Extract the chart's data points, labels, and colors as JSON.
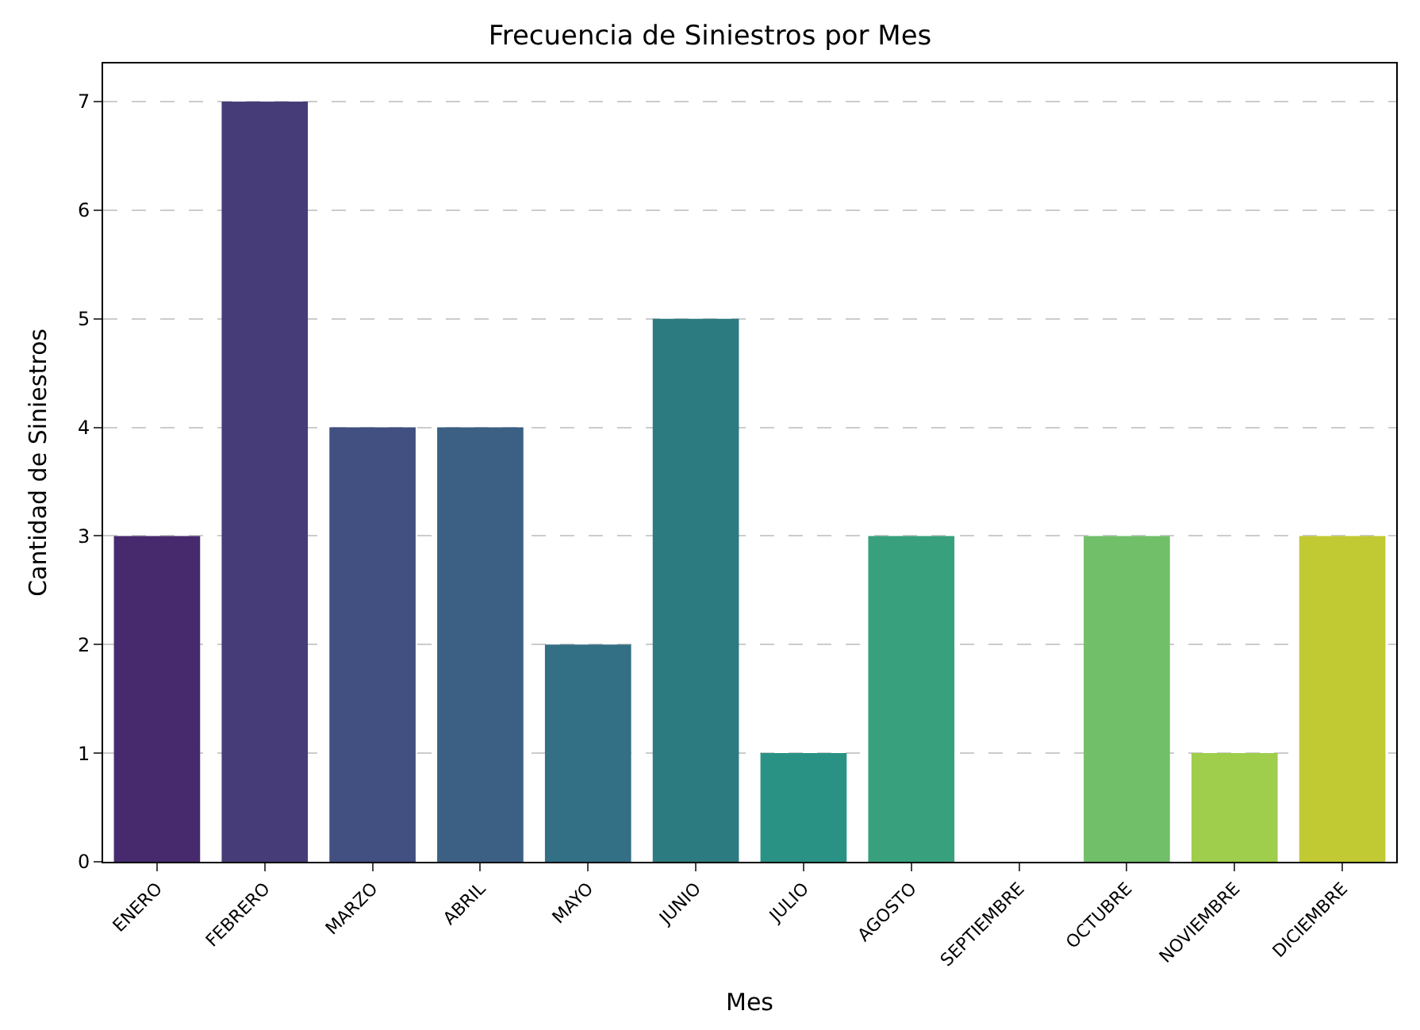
{
  "chart_data": {
    "type": "bar",
    "title": "Frecuencia de Siniestros por Mes",
    "xlabel": "Mes",
    "ylabel": "Cantidad de Siniestros",
    "categories": [
      "ENERO",
      "FEBRERO",
      "MARZO",
      "ABRIL",
      "MAYO",
      "JUNIO",
      "JULIO",
      "AGOSTO",
      "SEPTIEMBRE",
      "OCTUBRE",
      "NOVIEMBRE",
      "DICIEMBRE"
    ],
    "values": [
      3,
      7,
      4,
      4,
      2,
      5,
      1,
      3,
      0,
      3,
      1,
      3
    ],
    "colors": [
      "#472a6e",
      "#463d78",
      "#414f81",
      "#3b6084",
      "#336f85",
      "#2c7b80",
      "#2a9285",
      "#39a07d",
      "#56b06e",
      "#72bf6a",
      "#9fcd4c",
      "#c1c933"
    ],
    "ylim": [
      0,
      7.35
    ],
    "yticks": [
      0,
      1,
      2,
      3,
      4,
      5,
      6,
      7
    ],
    "grid": "y"
  }
}
